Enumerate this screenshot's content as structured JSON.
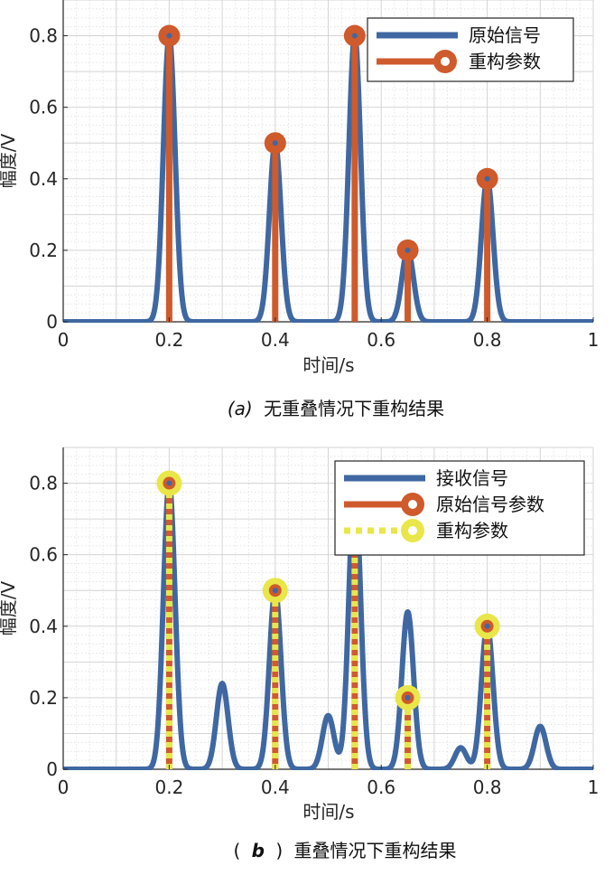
{
  "chart_data": [
    {
      "type": "line",
      "caption_label": "(a)",
      "caption": "无重叠情况下重构结果",
      "xlabel": "时间/s",
      "ylabel": "幅度/V",
      "xlim": [
        0,
        1
      ],
      "ylim": [
        0,
        0.9
      ],
      "xticks": [
        "0",
        "0.2",
        "0.4",
        "0.6",
        "0.8",
        "1"
      ],
      "yticks": [
        "0",
        "0.2",
        "0.4",
        "0.6",
        "0.8"
      ],
      "grid": true,
      "legend_position": "top-right",
      "series": [
        {
          "name": "原始信号",
          "kind": "line",
          "color": "#3f68a2",
          "pulses": [
            {
              "x": 0.2,
              "amp": 0.8
            },
            {
              "x": 0.4,
              "amp": 0.5
            },
            {
              "x": 0.55,
              "amp": 0.8
            },
            {
              "x": 0.65,
              "amp": 0.2
            },
            {
              "x": 0.8,
              "amp": 0.4
            }
          ]
        },
        {
          "name": "重构参数",
          "kind": "stem",
          "color": "#cf5a2b",
          "x": [
            0.2,
            0.4,
            0.55,
            0.65,
            0.8
          ],
          "y": [
            0.8,
            0.5,
            0.8,
            0.2,
            0.4
          ]
        }
      ]
    },
    {
      "type": "line",
      "caption_label": "b",
      "caption": "重叠情况下重构结果",
      "xlabel": "时间/s",
      "ylabel": "幅度/V",
      "xlim": [
        0,
        1
      ],
      "ylim": [
        0,
        0.9
      ],
      "xticks": [
        "0",
        "0.2",
        "0.4",
        "0.6",
        "0.8",
        "1"
      ],
      "yticks": [
        "0",
        "0.2",
        "0.4",
        "0.6",
        "0.8"
      ],
      "grid": true,
      "legend_position": "top-right",
      "series": [
        {
          "name": "接收信号",
          "kind": "line",
          "color": "#3f68a2",
          "pulses": [
            {
              "x": 0.2,
              "amp": 0.8
            },
            {
              "x": 0.3,
              "amp": 0.24
            },
            {
              "x": 0.4,
              "amp": 0.5
            },
            {
              "x": 0.5,
              "amp": 0.15
            },
            {
              "x": 0.55,
              "amp": 0.8
            },
            {
              "x": 0.65,
              "amp": 0.44
            },
            {
              "x": 0.75,
              "amp": 0.06
            },
            {
              "x": 0.8,
              "amp": 0.4
            },
            {
              "x": 0.9,
              "amp": 0.12
            }
          ]
        },
        {
          "name": "原始信号参数",
          "kind": "stem",
          "color": "#cf5a2b",
          "x": [
            0.2,
            0.4,
            0.55,
            0.65,
            0.8
          ],
          "y": [
            0.8,
            0.5,
            0.8,
            0.2,
            0.4
          ]
        },
        {
          "name": "重构参数",
          "kind": "stem-dotted",
          "color": "#e9e64a",
          "x": [
            0.2,
            0.4,
            0.55,
            0.65,
            0.8
          ],
          "y": [
            0.8,
            0.5,
            0.8,
            0.2,
            0.4
          ]
        }
      ]
    }
  ]
}
